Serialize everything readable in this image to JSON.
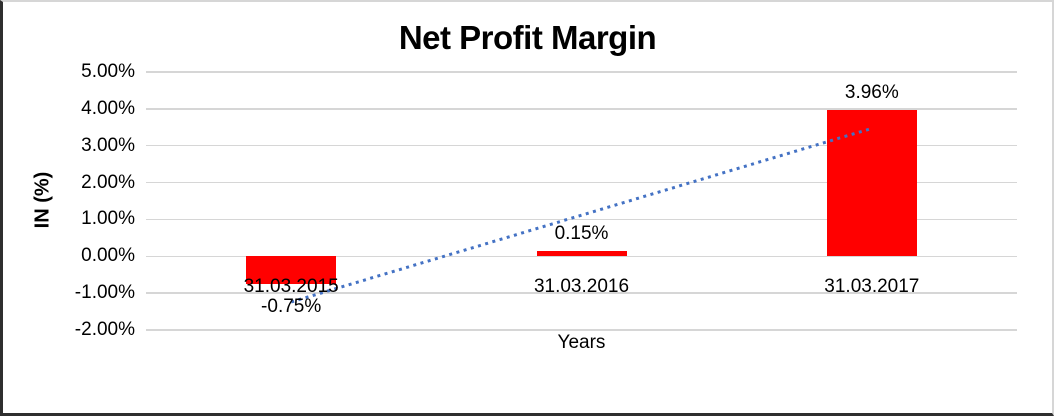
{
  "chart_data": {
    "type": "bar",
    "title": "Net Profit Margin",
    "xlabel": "Years",
    "ylabel": "IN (%)",
    "categories": [
      "31.03.2015",
      "31.03.2016",
      "31.03.2017"
    ],
    "values": [
      -0.75,
      0.15,
      3.96
    ],
    "data_labels": [
      "-0.75%",
      "0.15%",
      "3.96%"
    ],
    "y_ticks": [
      "5.00%",
      "4.00%",
      "3.00%",
      "2.00%",
      "1.00%",
      "0.00%",
      "-1.00%",
      "-2.00%"
    ],
    "ylim": [
      -2,
      5
    ],
    "grid": true,
    "legend_position": "none",
    "bar_color": "#ff0000",
    "trendline": {
      "style": "dotted",
      "color": "#4472c4",
      "points": [
        {
          "category": "31.03.2015",
          "value": -1.24
        },
        {
          "category": "31.03.2017",
          "value": 3.47
        }
      ]
    }
  },
  "colors": {
    "gridline": "#d6d6d6",
    "text": "#000000",
    "background": "#ffffff"
  }
}
